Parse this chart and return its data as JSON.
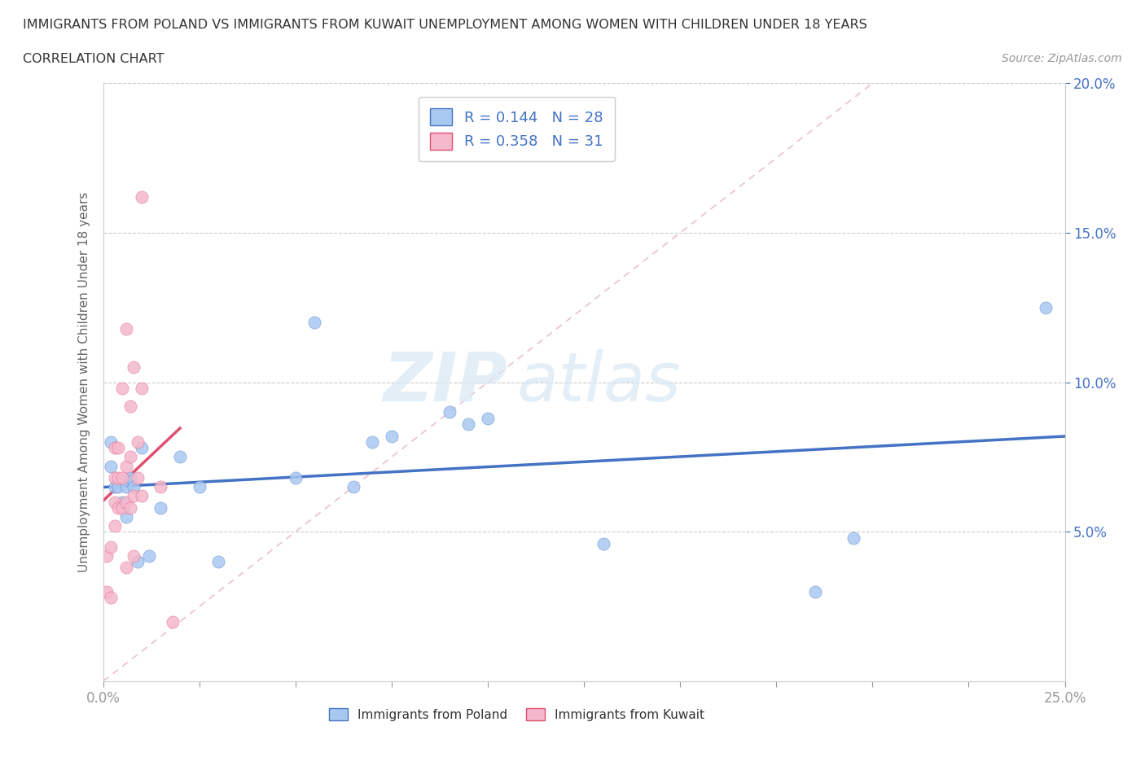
{
  "title_line1": "IMMIGRANTS FROM POLAND VS IMMIGRANTS FROM KUWAIT UNEMPLOYMENT AMONG WOMEN WITH CHILDREN UNDER 18 YEARS",
  "title_line2": "CORRELATION CHART",
  "source": "Source: ZipAtlas.com",
  "ylabel": "Unemployment Among Women with Children Under 18 years",
  "xlim": [
    0.0,
    0.25
  ],
  "ylim": [
    0.0,
    0.2
  ],
  "xtick_positions": [
    0.0,
    0.025,
    0.05,
    0.075,
    0.1,
    0.125,
    0.15,
    0.175,
    0.2,
    0.225,
    0.25
  ],
  "xtick_labels_show": {
    "0": "0.0%",
    "10": "25.0%"
  },
  "yticks": [
    0.05,
    0.1,
    0.15,
    0.2
  ],
  "poland_color": "#a8c8f0",
  "kuwait_color": "#f4b8cc",
  "poland_line_color": "#4472c4",
  "kuwait_line_color": "#e05070",
  "poland_R": 0.144,
  "poland_N": 28,
  "kuwait_R": 0.358,
  "kuwait_N": 31,
  "watermark_zip": "ZIP",
  "watermark_atlas": "atlas",
  "diag_color": "#e8c0d0",
  "poland_x": [
    0.002,
    0.002,
    0.003,
    0.004,
    0.005,
    0.006,
    0.006,
    0.007,
    0.008,
    0.009,
    0.01,
    0.012,
    0.015,
    0.02,
    0.025,
    0.03,
    0.05,
    0.055,
    0.065,
    0.07,
    0.075,
    0.09,
    0.095,
    0.1,
    0.13,
    0.185,
    0.195,
    0.245
  ],
  "poland_y": [
    0.072,
    0.08,
    0.065,
    0.065,
    0.06,
    0.055,
    0.065,
    0.068,
    0.065,
    0.04,
    0.078,
    0.042,
    0.058,
    0.075,
    0.065,
    0.04,
    0.068,
    0.12,
    0.065,
    0.08,
    0.082,
    0.09,
    0.086,
    0.088,
    0.046,
    0.03,
    0.048,
    0.125
  ],
  "kuwait_x": [
    0.001,
    0.001,
    0.002,
    0.002,
    0.003,
    0.003,
    0.003,
    0.003,
    0.004,
    0.004,
    0.004,
    0.005,
    0.005,
    0.005,
    0.006,
    0.006,
    0.006,
    0.006,
    0.007,
    0.007,
    0.007,
    0.008,
    0.008,
    0.008,
    0.009,
    0.009,
    0.01,
    0.01,
    0.01,
    0.015,
    0.018
  ],
  "kuwait_y": [
    0.03,
    0.042,
    0.028,
    0.045,
    0.052,
    0.06,
    0.068,
    0.078,
    0.058,
    0.068,
    0.078,
    0.058,
    0.068,
    0.098,
    0.038,
    0.06,
    0.072,
    0.118,
    0.058,
    0.075,
    0.092,
    0.042,
    0.062,
    0.105,
    0.068,
    0.08,
    0.062,
    0.098,
    0.162,
    0.065,
    0.02
  ],
  "legend_R_color": "#4472c4",
  "legend_N_color": "#4472c4"
}
